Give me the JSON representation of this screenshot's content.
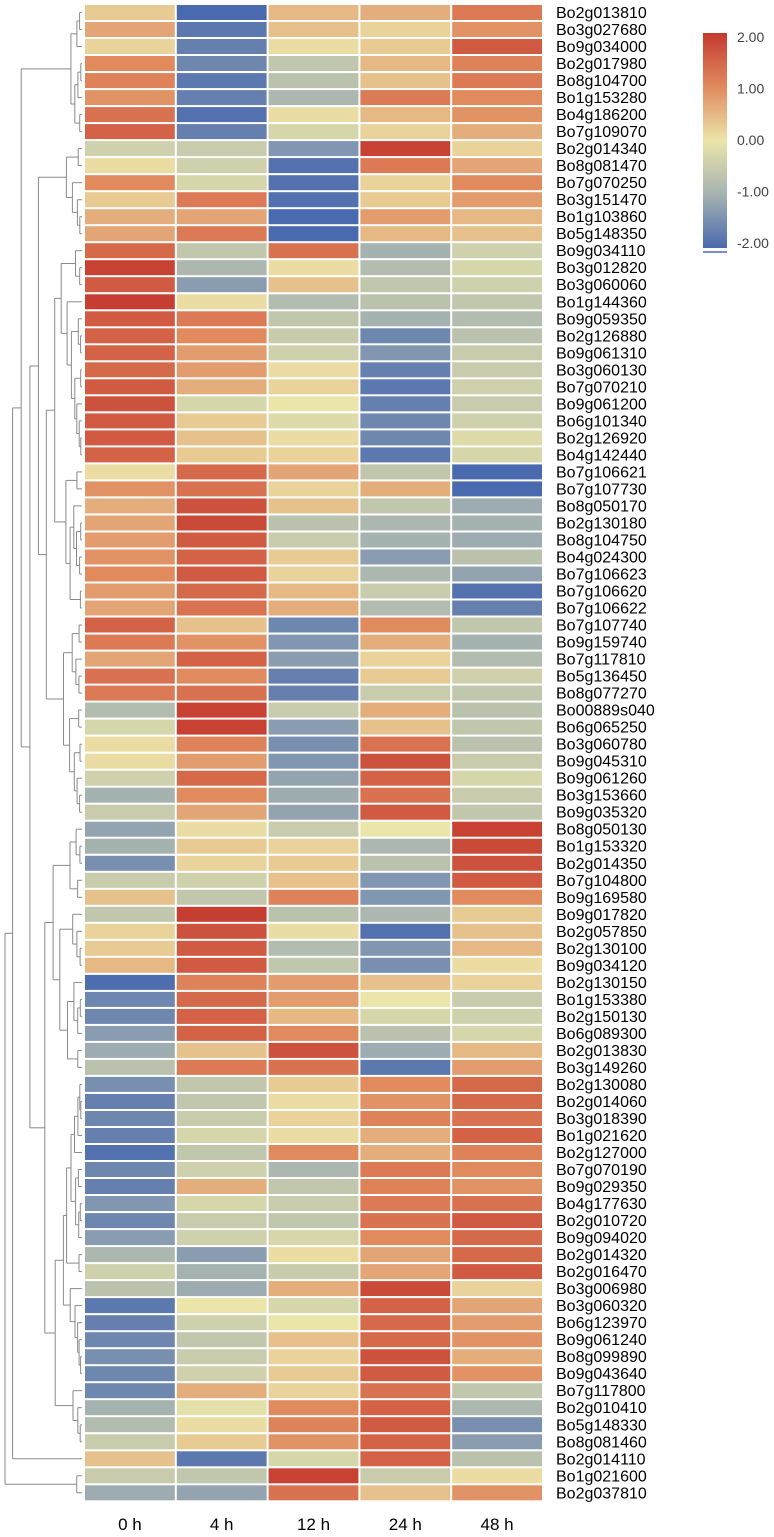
{
  "chart_data": {
    "type": "heatmap",
    "columns": [
      "0 h",
      "4 h",
      "12 h",
      "24 h",
      "48 h"
    ],
    "rows": [
      {
        "gene": "Bo2g013810",
        "values": [
          0.3,
          -2.0,
          0.5,
          0.6,
          1.2
        ]
      },
      {
        "gene": "Bo3g027680",
        "values": [
          0.7,
          -1.8,
          0.4,
          0.2,
          0.9
        ]
      },
      {
        "gene": "Bo9g034000",
        "values": [
          0.2,
          -1.7,
          0.1,
          0.3,
          1.6
        ]
      },
      {
        "gene": "Bo2g017980",
        "values": [
          1.0,
          -1.6,
          -0.6,
          0.5,
          1.1
        ]
      },
      {
        "gene": "Bo8g104700",
        "values": [
          1.1,
          -1.8,
          -0.7,
          0.4,
          1.2
        ]
      },
      {
        "gene": "Bo1g153280",
        "values": [
          0.9,
          -1.7,
          -0.9,
          1.2,
          1.0
        ]
      },
      {
        "gene": "Bo4g186200",
        "values": [
          1.3,
          -1.9,
          0.1,
          0.5,
          0.9
        ]
      },
      {
        "gene": "Bo7g109070",
        "values": [
          1.5,
          -1.7,
          -0.3,
          0.2,
          0.6
        ]
      },
      {
        "gene": "Bo2g014340",
        "values": [
          -0.4,
          -0.5,
          -1.4,
          1.9,
          0.2
        ]
      },
      {
        "gene": "Bo8g081470",
        "values": [
          0.1,
          -0.4,
          -1.9,
          1.2,
          0.7
        ]
      },
      {
        "gene": "Bo7g070250",
        "values": [
          1.0,
          -0.3,
          -1.9,
          0.2,
          1.0
        ]
      },
      {
        "gene": "Bo3g151470",
        "values": [
          0.3,
          1.2,
          -1.9,
          0.3,
          0.8
        ]
      },
      {
        "gene": "Bo1g103860",
        "values": [
          0.6,
          0.7,
          -2.0,
          0.8,
          0.5
        ]
      },
      {
        "gene": "Bo5g148350",
        "values": [
          0.7,
          1.2,
          -2.0,
          0.5,
          0.4
        ]
      },
      {
        "gene": "Bo9g034110",
        "values": [
          1.4,
          -0.6,
          1.3,
          -1.0,
          -0.4
        ]
      },
      {
        "gene": "Bo3g012820",
        "values": [
          1.9,
          -0.9,
          0.1,
          -0.8,
          -0.3
        ]
      },
      {
        "gene": "Bo3g060060",
        "values": [
          1.6,
          -1.3,
          0.4,
          -0.6,
          -0.4
        ]
      },
      {
        "gene": "Bo1g144360",
        "values": [
          1.95,
          0.1,
          -0.8,
          -0.7,
          -0.6
        ]
      },
      {
        "gene": "Bo9g059350",
        "values": [
          1.6,
          1.2,
          -0.6,
          -1.0,
          -0.8
        ]
      },
      {
        "gene": "Bo2g126880",
        "values": [
          1.5,
          1.0,
          -0.5,
          -1.6,
          -0.7
        ]
      },
      {
        "gene": "Bo9g061310",
        "values": [
          1.5,
          0.8,
          -0.4,
          -1.4,
          -0.5
        ]
      },
      {
        "gene": "Bo3g060130",
        "values": [
          1.4,
          0.8,
          0.1,
          -1.7,
          -0.5
        ]
      },
      {
        "gene": "Bo7g070210",
        "values": [
          1.6,
          0.6,
          0.2,
          -1.8,
          -0.4
        ]
      },
      {
        "gene": "Bo9g061200",
        "values": [
          1.7,
          -0.3,
          0.0,
          -1.7,
          -0.5
        ]
      },
      {
        "gene": "Bo6g101340",
        "values": [
          1.6,
          0.3,
          -0.2,
          -1.6,
          -0.4
        ]
      },
      {
        "gene": "Bo2g126920",
        "values": [
          1.6,
          0.4,
          0.1,
          -1.6,
          -0.2
        ]
      },
      {
        "gene": "Bo4g142440",
        "values": [
          1.5,
          0.3,
          0.2,
          -1.8,
          -0.3
        ]
      },
      {
        "gene": "Bo7g106621",
        "values": [
          0.1,
          1.4,
          0.7,
          -0.6,
          -2.0
        ]
      },
      {
        "gene": "Bo7g107730",
        "values": [
          0.9,
          1.3,
          0.2,
          0.6,
          -2.0
        ]
      },
      {
        "gene": "Bo8g050170",
        "values": [
          0.6,
          1.7,
          0.4,
          -0.6,
          -1.1
        ]
      },
      {
        "gene": "Bo2g130180",
        "values": [
          0.7,
          1.8,
          -0.7,
          -0.9,
          -1.0
        ]
      },
      {
        "gene": "Bo8g104750",
        "values": [
          0.8,
          1.6,
          -0.5,
          -1.0,
          -1.1
        ]
      },
      {
        "gene": "Bo4g024300",
        "values": [
          0.9,
          1.5,
          0.3,
          -1.3,
          -0.7
        ]
      },
      {
        "gene": "Bo7g106623",
        "values": [
          1.0,
          1.6,
          0.2,
          -0.9,
          -1.2
        ]
      },
      {
        "gene": "Bo7g106620",
        "values": [
          0.8,
          1.4,
          0.5,
          -0.5,
          -1.9
        ]
      },
      {
        "gene": "Bo7g106622",
        "values": [
          0.7,
          1.3,
          0.6,
          -0.8,
          -1.7
        ]
      },
      {
        "gene": "Bo7g107740",
        "values": [
          1.5,
          0.4,
          -1.6,
          1.0,
          -0.6
        ]
      },
      {
        "gene": "Bo9g159740",
        "values": [
          1.2,
          0.9,
          -1.4,
          0.6,
          -1.0
        ]
      },
      {
        "gene": "Bo7g117810",
        "values": [
          0.7,
          1.5,
          -1.3,
          0.2,
          -0.8
        ]
      },
      {
        "gene": "Bo5g136450",
        "values": [
          1.3,
          1.0,
          -1.7,
          0.3,
          -0.4
        ]
      },
      {
        "gene": "Bo8g077270",
        "values": [
          1.2,
          1.3,
          -1.7,
          -0.5,
          -0.6
        ]
      },
      {
        "gene": "Bo00889s040",
        "values": [
          -0.8,
          1.9,
          -0.5,
          0.6,
          -0.7
        ]
      },
      {
        "gene": "Bo6g065250",
        "values": [
          -0.3,
          1.9,
          -1.3,
          0.4,
          -0.6
        ]
      },
      {
        "gene": "Bo3g060780",
        "values": [
          0.1,
          1.1,
          -1.5,
          1.3,
          -0.7
        ]
      },
      {
        "gene": "Bo9g045310",
        "values": [
          0.1,
          0.8,
          -1.4,
          1.7,
          -0.5
        ]
      },
      {
        "gene": "Bo9g061260",
        "values": [
          -0.4,
          1.4,
          -1.2,
          1.5,
          -0.3
        ]
      },
      {
        "gene": "Bo3g153660",
        "values": [
          -1.0,
          1.0,
          -1.1,
          1.3,
          -0.5
        ]
      },
      {
        "gene": "Bo9g035320",
        "values": [
          -0.5,
          0.7,
          -1.2,
          1.6,
          -0.6
        ]
      },
      {
        "gene": "Bo8g050130",
        "values": [
          -1.2,
          0.1,
          -0.5,
          0.0,
          1.9
        ]
      },
      {
        "gene": "Bo1g153320",
        "values": [
          -1.0,
          0.3,
          0.2,
          -0.9,
          1.8
        ]
      },
      {
        "gene": "Bo2g014350",
        "values": [
          -1.5,
          0.2,
          0.3,
          -0.7,
          1.7
        ]
      },
      {
        "gene": "Bo7g104800",
        "values": [
          -0.5,
          -0.4,
          0.4,
          -1.4,
          1.6
        ]
      },
      {
        "gene": "Bo9g169580",
        "values": [
          0.4,
          -0.6,
          1.1,
          -1.4,
          1.0
        ]
      },
      {
        "gene": "Bo9g017820",
        "values": [
          -0.6,
          1.95,
          -0.7,
          -0.9,
          0.3
        ]
      },
      {
        "gene": "Bo2g057850",
        "values": [
          0.2,
          1.7,
          0.1,
          -1.9,
          0.4
        ]
      },
      {
        "gene": "Bo2g130100",
        "values": [
          0.3,
          1.6,
          -0.8,
          -1.4,
          0.5
        ]
      },
      {
        "gene": "Bo9g034120",
        "values": [
          0.5,
          1.6,
          -0.6,
          -1.5,
          0.1
        ]
      },
      {
        "gene": "Bo2g130150",
        "values": [
          -1.95,
          1.1,
          0.8,
          0.4,
          0.2
        ]
      },
      {
        "gene": "Bo1g153380",
        "values": [
          -1.6,
          1.4,
          0.8,
          0.0,
          -0.5
        ]
      },
      {
        "gene": "Bo2g150130",
        "values": [
          -1.6,
          1.5,
          0.5,
          -0.3,
          -0.4
        ]
      },
      {
        "gene": "Bo6g089300",
        "values": [
          -1.3,
          1.5,
          1.0,
          -0.7,
          -0.3
        ]
      },
      {
        "gene": "Bo2g013830",
        "values": [
          -1.1,
          0.4,
          1.7,
          -1.1,
          0.5
        ]
      },
      {
        "gene": "Bo3g149260",
        "values": [
          -0.7,
          1.2,
          1.3,
          -1.8,
          0.8
        ]
      },
      {
        "gene": "Bo2g130080",
        "values": [
          -1.5,
          -0.6,
          0.3,
          1.0,
          1.4
        ]
      },
      {
        "gene": "Bo2g014060",
        "values": [
          -1.7,
          -0.6,
          0.1,
          0.9,
          1.4
        ]
      },
      {
        "gene": "Bo3g018390",
        "values": [
          -1.6,
          -0.5,
          0.2,
          1.1,
          1.3
        ]
      },
      {
        "gene": "Bo1g021620",
        "values": [
          -1.7,
          -0.3,
          0.1,
          0.6,
          1.5
        ]
      },
      {
        "gene": "Bo2g127000",
        "values": [
          -1.9,
          -0.6,
          1.0,
          0.6,
          1.1
        ]
      },
      {
        "gene": "Bo7g070190",
        "values": [
          -1.6,
          -0.4,
          -0.9,
          1.2,
          1.0
        ]
      },
      {
        "gene": "Bo9g029350",
        "values": [
          -1.7,
          0.6,
          -0.6,
          1.1,
          0.9
        ]
      },
      {
        "gene": "Bo4g177630",
        "values": [
          -1.4,
          -0.3,
          -0.5,
          1.2,
          1.3
        ]
      },
      {
        "gene": "Bo2g010720",
        "values": [
          -1.6,
          -0.5,
          -0.6,
          1.3,
          1.6
        ]
      },
      {
        "gene": "Bo9g094020",
        "values": [
          -1.3,
          -0.4,
          -0.3,
          1.0,
          1.4
        ]
      },
      {
        "gene": "Bo2g014320",
        "values": [
          -0.9,
          -1.3,
          0.1,
          0.7,
          1.4
        ]
      },
      {
        "gene": "Bo2g016470",
        "values": [
          -0.4,
          -1.0,
          -0.5,
          0.7,
          1.6
        ]
      },
      {
        "gene": "Bo3g006980",
        "values": [
          -0.7,
          -1.1,
          0.6,
          1.8,
          0.2
        ]
      },
      {
        "gene": "Bo3g060320",
        "values": [
          -1.8,
          0.0,
          -0.3,
          1.5,
          0.7
        ]
      },
      {
        "gene": "Bo6g123970",
        "values": [
          -1.7,
          -0.4,
          0.0,
          1.4,
          0.8
        ]
      },
      {
        "gene": "Bo9g061240",
        "values": [
          -1.6,
          -0.6,
          0.4,
          1.4,
          0.9
        ]
      },
      {
        "gene": "Bo8g099890",
        "values": [
          -1.5,
          -0.5,
          0.2,
          1.7,
          0.6
        ]
      },
      {
        "gene": "Bo9g043640",
        "values": [
          -1.6,
          -0.4,
          0.3,
          1.6,
          0.9
        ]
      },
      {
        "gene": "Bo7g117800",
        "values": [
          -1.6,
          0.6,
          0.2,
          1.3,
          -0.6
        ]
      },
      {
        "gene": "Bo2g010410",
        "values": [
          -1.0,
          -0.1,
          1.0,
          1.5,
          -0.9
        ]
      },
      {
        "gene": "Bo5g148330",
        "values": [
          -0.8,
          0.1,
          1.1,
          1.6,
          -1.5
        ]
      },
      {
        "gene": "Bo8g081460",
        "values": [
          -0.5,
          0.3,
          0.9,
          1.5,
          -1.3
        ]
      },
      {
        "gene": "Bo2g014110",
        "values": [
          0.4,
          -1.8,
          -0.3,
          1.5,
          -0.7
        ]
      },
      {
        "gene": "Bo1g021600",
        "values": [
          -0.5,
          -0.6,
          1.9,
          -0.5,
          0.1
        ]
      },
      {
        "gene": "Bo2g037810",
        "values": [
          -1.1,
          -1.2,
          1.3,
          0.4,
          0.9
        ]
      }
    ],
    "color_scale": {
      "min": -2.0,
      "max": 2.0,
      "ticks": [
        "2.00",
        "1.00",
        "0.00",
        "-1.00",
        "-2.00"
      ],
      "colors": {
        "low": "#4a6aaf",
        "mid": "#ebe5a9",
        "high": "#c53a2f"
      }
    },
    "title": "",
    "xlabel": "",
    "ylabel": ""
  }
}
